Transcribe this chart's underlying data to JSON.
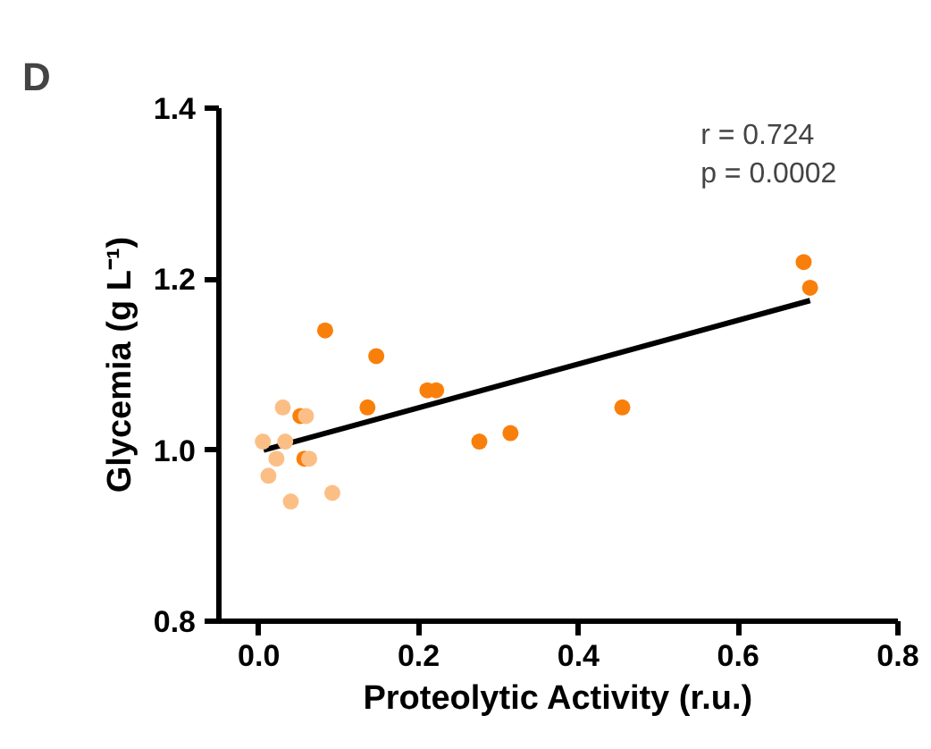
{
  "chart_data": {
    "type": "scatter",
    "title": "D",
    "xlabel": "Proteolytic Activity (r.u.)",
    "ylabel": "Glycemia (g L⁻¹)",
    "xlim": [
      -0.05,
      0.8
    ],
    "ylim": [
      0.8,
      1.4
    ],
    "xticks": [
      {
        "value": 0,
        "label": "0.0"
      },
      0.2,
      0.4,
      0.6,
      0.8
    ],
    "yticks": [
      0.8,
      {
        "value": 1,
        "label": "1.0"
      },
      1.2,
      1.4
    ],
    "grid": false,
    "marker": "circle",
    "annotations": [
      "r = 0.724",
      "p = 0.0002"
    ],
    "series": [
      {
        "color": "#fbbf86",
        "x": [
          0.005,
          0.012,
          0.022,
          0.03,
          0.033,
          0.04,
          0.059,
          0.063,
          0.092
        ],
        "values": [
          1.01,
          0.97,
          0.99,
          1.05,
          1.01,
          0.94,
          1.04,
          0.99,
          0.95
        ]
      },
      {
        "color": "#f97f0b",
        "x": [
          0.052,
          0.057,
          0.083,
          0.136,
          0.147,
          0.211,
          0.222,
          0.276,
          0.315,
          0.455,
          0.682,
          0.69
        ],
        "values": [
          1.04,
          0.99,
          1.14,
          1.05,
          1.11,
          1.07,
          1.07,
          1.01,
          1.02,
          1.05,
          1.22,
          1.19
        ]
      },
      {
        "type": "line",
        "color": "#000000",
        "marker": "none",
        "x": [
          0.006,
          0.69
        ],
        "values": [
          1.0,
          1.175
        ]
      }
    ]
  }
}
